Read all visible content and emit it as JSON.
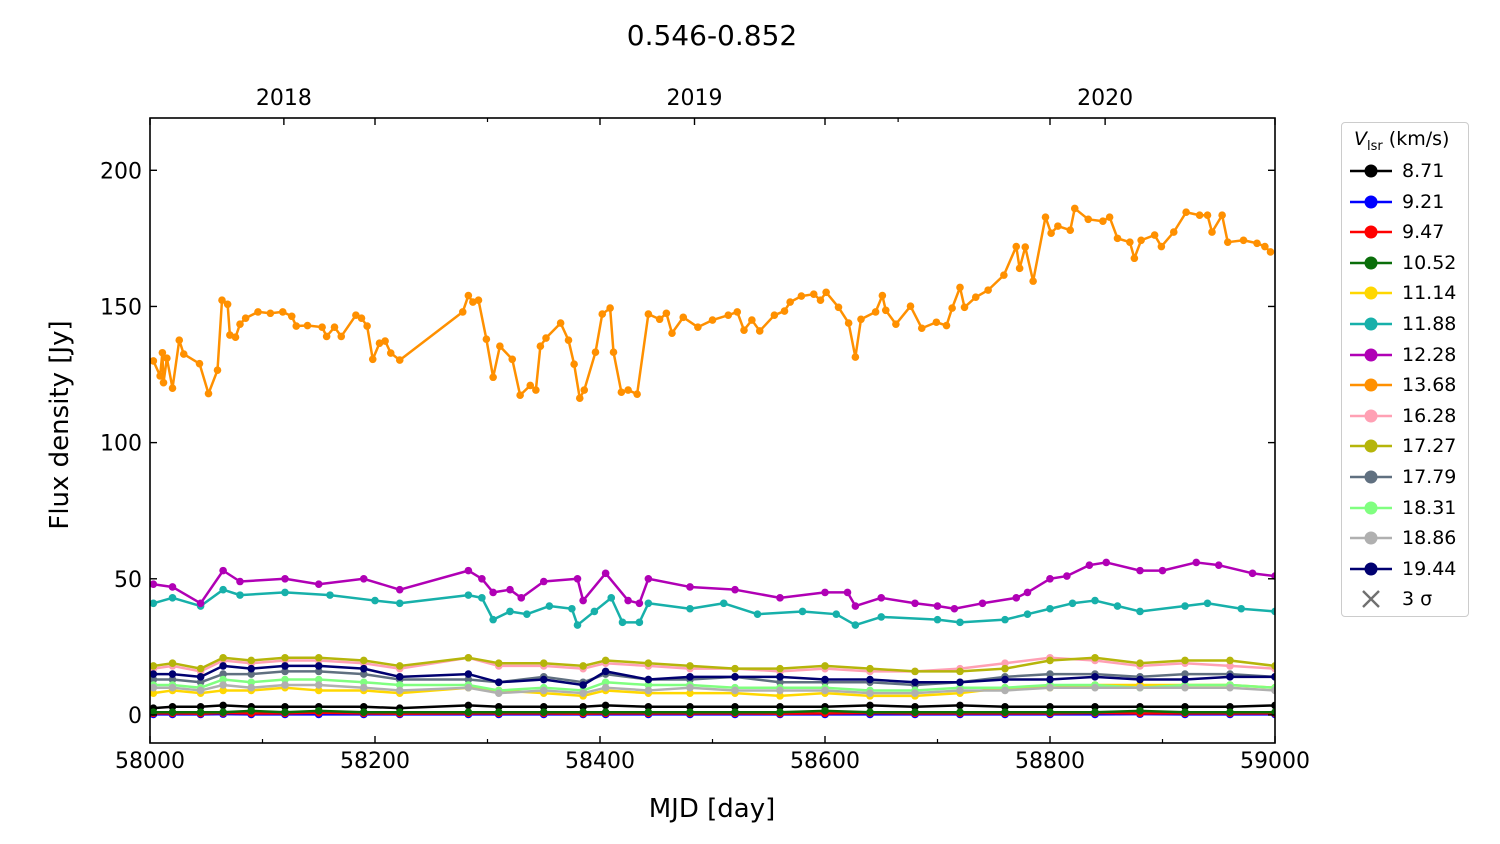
{
  "chart_data": {
    "type": "line",
    "title": "0.546-0.852",
    "xlabel": "MJD [day]",
    "ylabel": "Flux density [Jy]",
    "xlim": [
      58000,
      59000
    ],
    "ylim": [
      -10.3,
      219.2
    ],
    "xticks": [
      58000,
      58200,
      58400,
      58600,
      58800,
      59000
    ],
    "yticks": [
      0,
      50,
      100,
      150,
      200
    ],
    "top_axis": {
      "ticks": [
        {
          "label": "2018",
          "mjd": 58119
        },
        {
          "label": "2019",
          "mjd": 58484
        },
        {
          "label": "2020",
          "mjd": 58849
        }
      ],
      "minor_mjd": [
        58300,
        58665
      ]
    },
    "grid": false,
    "legend": {
      "title_main": "V",
      "title_sub": "lsr",
      "title_unit": "(km/s)",
      "placement": "outside-right",
      "sigma_label": "3 σ"
    },
    "grid_x": [
      58003,
      58020,
      58045,
      58065,
      58090,
      58120,
      58150,
      58190,
      58222,
      58283,
      58310,
      58350,
      58385,
      58405,
      58443,
      58480,
      58520,
      58560,
      58600,
      58640,
      58680,
      58720,
      58760,
      58800,
      58840,
      58880,
      58920,
      58960,
      59000
    ],
    "series": [
      {
        "name": "8.71",
        "color": "#000000",
        "values": [
          2.5,
          3,
          3,
          3.5,
          3,
          3,
          3,
          3,
          2.5,
          3.5,
          3,
          3,
          3,
          3.5,
          3,
          3,
          3,
          3,
          3,
          3.5,
          3,
          3.5,
          3,
          3,
          3,
          3,
          3,
          3,
          3.5
        ]
      },
      {
        "name": "9.21",
        "color": "#0000ff",
        "values": [
          0.2,
          0.2,
          0.2,
          0.3,
          0.2,
          0.2,
          0.2,
          0.2,
          0.2,
          0.2,
          0.2,
          0.2,
          0.2,
          0.2,
          0.2,
          0.2,
          0.2,
          0.2,
          0.2,
          0.2,
          0.2,
          0.2,
          0.2,
          0.2,
          0.2,
          0.3,
          0.2,
          0.2,
          0.2
        ]
      },
      {
        "name": "9.47",
        "color": "#ff0000",
        "values": [
          0.6,
          0.6,
          0.5,
          0.7,
          0.6,
          0.6,
          0.8,
          0.6,
          0.5,
          0.6,
          0.6,
          0.6,
          0.5,
          0.6,
          0.6,
          0.6,
          0.6,
          0.5,
          0.6,
          0.7,
          0.6,
          0.6,
          0.6,
          0.6,
          0.7,
          0.6,
          0.6,
          0.6,
          0.6
        ]
      },
      {
        "name": "10.52",
        "color": "#0a6e0a",
        "values": [
          1,
          1,
          1,
          1,
          1.5,
          1,
          1.5,
          1,
          1,
          1,
          1,
          1,
          1,
          1,
          1,
          1,
          1,
          1,
          1.5,
          1,
          1,
          1,
          1,
          1,
          1,
          1.5,
          1,
          1,
          1
        ]
      },
      {
        "name": "11.14",
        "color": "#ffd700",
        "values": [
          8,
          9,
          8,
          9,
          9,
          10,
          9,
          9,
          8,
          10,
          9,
          8,
          7,
          9,
          8,
          8,
          8,
          7,
          8,
          7,
          7,
          8,
          10,
          10,
          11,
          11,
          11,
          11,
          10
        ]
      },
      {
        "name": "11.88",
        "color": "#17b0aa",
        "x": [
          58003,
          58020,
          58045,
          58065,
          58080,
          58120,
          58160,
          58200,
          58222,
          58283,
          58295,
          58305,
          58320,
          58335,
          58355,
          58375,
          58380,
          58395,
          58410,
          58420,
          58435,
          58443,
          58480,
          58510,
          58540,
          58580,
          58610,
          58627,
          58650,
          58700,
          58720,
          58760,
          58780,
          58800,
          58820,
          58840,
          58860,
          58880,
          58920,
          58940,
          58970,
          59000
        ],
        "values": [
          41,
          43,
          40,
          46,
          44,
          45,
          44,
          42,
          41,
          44,
          43,
          35,
          38,
          37,
          40,
          39,
          33,
          38,
          43,
          34,
          34,
          41,
          39,
          41,
          37,
          38,
          37,
          33,
          36,
          35,
          34,
          35,
          37,
          39,
          41,
          42,
          40,
          38,
          40,
          41,
          39,
          38
        ]
      },
      {
        "name": "12.28",
        "color": "#b000b5",
        "x": [
          58003,
          58020,
          58045,
          58065,
          58080,
          58120,
          58150,
          58190,
          58222,
          58283,
          58295,
          58305,
          58320,
          58330,
          58350,
          58380,
          58385,
          58405,
          58425,
          58435,
          58443,
          58480,
          58520,
          58560,
          58600,
          58620,
          58627,
          58650,
          58680,
          58700,
          58715,
          58740,
          58770,
          58780,
          58800,
          58815,
          58835,
          58850,
          58880,
          58900,
          58930,
          58950,
          58980,
          59000
        ],
        "values": [
          48,
          47,
          41,
          53,
          49,
          50,
          48,
          50,
          46,
          53,
          50,
          45,
          46,
          43,
          49,
          50,
          42,
          52,
          42,
          41,
          50,
          47,
          46,
          43,
          45,
          45,
          40,
          43,
          41,
          40,
          39,
          41,
          43,
          45,
          50,
          51,
          55,
          56,
          53,
          53,
          56,
          55,
          52,
          51
        ]
      },
      {
        "name": "13.68",
        "color": "#ff9000",
        "x": [
          58003,
          58009,
          58011,
          58012,
          58015,
          58020,
          58026,
          58030,
          58044,
          58052,
          58060,
          58064,
          58069,
          58071,
          58076,
          58080,
          58085,
          58096,
          58107,
          58118,
          58126,
          58130,
          58140,
          58153,
          58157,
          58164,
          58170,
          58183,
          58188,
          58193,
          58198,
          58204,
          58209,
          58214,
          58222,
          58278,
          58283,
          58287,
          58292,
          58299,
          58305,
          58311,
          58322,
          58329,
          58338,
          58343,
          58347,
          58352,
          58365,
          58372,
          58377,
          58382,
          58386,
          58396,
          58402,
          58409,
          58412,
          58419,
          58425,
          58433,
          58443,
          58453,
          58459,
          58464,
          58474,
          58487,
          58500,
          58514,
          58522,
          58528,
          58535,
          58542,
          58555,
          58564,
          58569,
          58579,
          58590,
          58596,
          58601,
          58612,
          58621,
          58627,
          58632,
          58645,
          58651,
          58654,
          58663,
          58676,
          58686,
          58699,
          58708,
          58713,
          58720,
          58724,
          58734,
          58745,
          58759,
          58770,
          58773,
          58778,
          58785,
          58796,
          58801,
          58807,
          58818,
          58822,
          58834,
          58847,
          58853,
          58860,
          58871,
          58875,
          58881,
          58893,
          58899,
          58910,
          58921,
          58933,
          58940,
          58944,
          58953,
          58958,
          58972,
          58984,
          58991,
          58996
        ],
        "values": [
          130,
          124.5,
          133,
          122,
          131,
          120,
          137.6,
          132.5,
          129,
          118,
          126.6,
          152.3,
          150.8,
          139.5,
          138.7,
          143.5,
          145.7,
          148,
          147.5,
          148,
          146.4,
          142.8,
          143,
          142.4,
          139,
          142.4,
          139,
          146.8,
          145.7,
          142.8,
          130.6,
          136.5,
          137.3,
          132.9,
          130.3,
          148,
          154,
          151.6,
          152.3,
          138,
          124,
          135.4,
          130.6,
          117.4,
          121,
          119.3,
          135.4,
          138.4,
          143.9,
          137.6,
          128.8,
          116.3,
          119.3,
          133.2,
          147.2,
          149.4,
          133.2,
          118.5,
          119.3,
          117.8,
          147.2,
          145.3,
          147.5,
          140.2,
          146,
          142.4,
          145,
          146.8,
          148,
          141.3,
          145,
          141,
          146.8,
          148.3,
          151.6,
          153.8,
          154.5,
          152.3,
          155.2,
          149.7,
          143.9,
          131.4,
          145.3,
          148,
          154,
          148.6,
          143.5,
          150.1,
          142,
          144.2,
          143,
          149.4,
          157,
          149.7,
          153.4,
          156,
          161.5,
          172,
          164,
          171.8,
          159.3,
          182.8,
          176.9,
          179.5,
          178,
          186,
          182,
          181.3,
          182.8,
          175,
          173.6,
          167.7,
          174.3,
          176.2,
          172,
          177.3,
          184.6,
          183.5,
          183.5,
          177.3,
          183.5,
          173.6,
          174.3,
          173.2,
          172,
          170
        ]
      },
      {
        "name": "16.28",
        "color": "#ffa0b4",
        "values": [
          17,
          18,
          16,
          20,
          19,
          20,
          20,
          19,
          17,
          21,
          18,
          18,
          17,
          19,
          18,
          17,
          17,
          16,
          17,
          16,
          16,
          17,
          19,
          21,
          20,
          18,
          19,
          18,
          17
        ]
      },
      {
        "name": "17.27",
        "color": "#b5b50a",
        "values": [
          18,
          19,
          17,
          21,
          20,
          21,
          21,
          20,
          18,
          21,
          19,
          19,
          18,
          20,
          19,
          18,
          17,
          17,
          18,
          17,
          16,
          16,
          17,
          20,
          21,
          19,
          20,
          20,
          18
        ]
      },
      {
        "name": "17.79",
        "color": "#607080",
        "values": [
          13,
          13,
          12,
          15,
          15,
          16,
          16,
          15,
          13,
          13,
          12,
          14,
          12,
          15,
          13,
          13,
          14,
          12,
          12,
          12,
          11,
          12,
          14,
          15,
          15,
          14,
          15,
          15,
          14
        ]
      },
      {
        "name": "18.31",
        "color": "#80ff80",
        "values": [
          11,
          11,
          10,
          13,
          12,
          13,
          13,
          12,
          11,
          11,
          9,
          10,
          9,
          12,
          11,
          11,
          10,
          10,
          10,
          9,
          9,
          10,
          10,
          11,
          11,
          10,
          11,
          11,
          10
        ]
      },
      {
        "name": "18.86",
        "color": "#b0b0b0",
        "values": [
          10,
          10,
          9,
          11,
          10,
          11,
          11,
          10,
          9,
          10,
          8,
          9,
          8,
          10,
          9,
          10,
          9,
          9,
          9,
          8,
          8,
          9,
          9,
          10,
          10,
          10,
          10,
          10,
          9
        ]
      },
      {
        "name": "19.44",
        "color": "#000070",
        "values": [
          15,
          15,
          14,
          18,
          17,
          18,
          18,
          17,
          14,
          15,
          12,
          13,
          11,
          16,
          13,
          14,
          14,
          14,
          13,
          13,
          12,
          12,
          13,
          13,
          14,
          13,
          13,
          14,
          14
        ]
      }
    ],
    "sigma_color": "#707070",
    "sigma_value": 0.4
  }
}
